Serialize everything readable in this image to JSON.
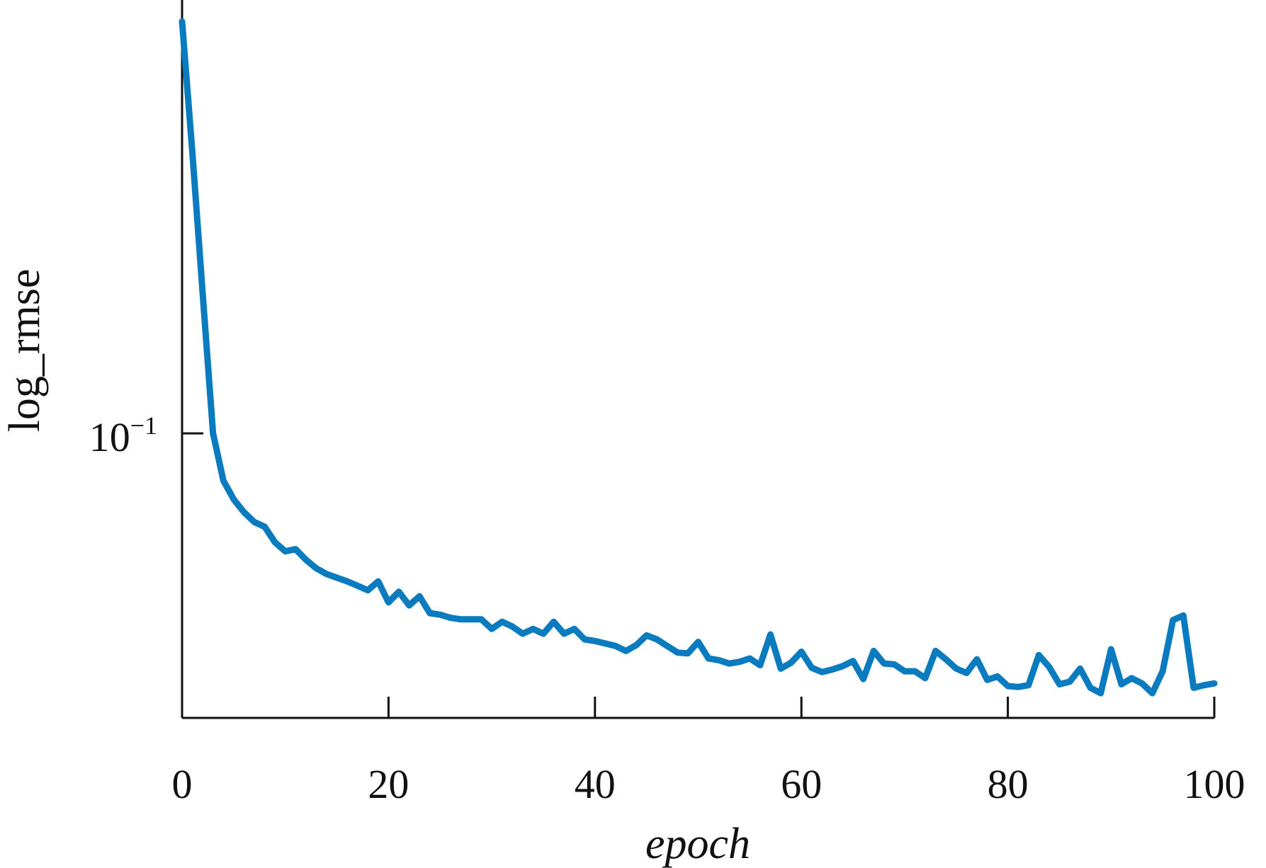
{
  "chart_data": {
    "type": "line",
    "xlabel": "epoch",
    "ylabel": "log_rmse",
    "yscale": "log",
    "xlim": [
      0,
      100
    ],
    "ylim": [
      0.0605,
      0.215
    ],
    "xticks": [
      0,
      20,
      40,
      60,
      80,
      100
    ],
    "xtick_labels": [
      "0",
      "20",
      "40",
      "60",
      "80",
      "100"
    ],
    "yticks": [
      0.1
    ],
    "ytick_labels": [
      {
        "base": "10",
        "exp": "−1"
      }
    ],
    "grid": false,
    "line_color": "#0a7bbf",
    "series": [
      {
        "x": [
          0,
          1,
          2,
          3,
          4,
          5,
          6,
          7,
          8,
          9,
          10,
          11,
          12,
          13,
          14,
          15,
          16,
          17,
          18,
          19,
          20,
          21,
          22,
          23,
          24,
          25,
          26,
          27,
          28,
          29,
          30,
          31,
          32,
          33,
          34,
          35,
          36,
          37,
          38,
          39,
          40,
          41,
          42,
          43,
          44,
          45,
          46,
          47,
          48,
          49,
          50,
          51,
          52,
          53,
          54,
          55,
          56,
          57,
          58,
          59,
          60,
          61,
          62,
          63,
          64,
          65,
          66,
          67,
          68,
          69,
          70,
          71,
          72,
          73,
          74,
          75,
          76,
          77,
          78,
          79,
          80,
          81,
          82,
          83,
          84,
          85,
          86,
          87,
          88,
          89,
          90,
          91,
          92,
          93,
          94,
          95,
          96,
          97,
          98,
          99,
          100
        ],
        "values": [
          0.207,
          0.164,
          0.128,
          0.1,
          0.092,
          0.089,
          0.087,
          0.0855,
          0.0848,
          0.0825,
          0.0812,
          0.0815,
          0.08,
          0.0788,
          0.078,
          0.0775,
          0.077,
          0.0764,
          0.0758,
          0.077,
          0.0742,
          0.0756,
          0.0738,
          0.075,
          0.0728,
          0.0726,
          0.0722,
          0.072,
          0.072,
          0.072,
          0.0708,
          0.0717,
          0.0711,
          0.0702,
          0.0708,
          0.0702,
          0.0717,
          0.0702,
          0.0708,
          0.0695,
          0.0693,
          0.069,
          0.0687,
          0.0681,
          0.0688,
          0.07,
          0.0695,
          0.0687,
          0.0679,
          0.0678,
          0.0692,
          0.0672,
          0.067,
          0.0666,
          0.0668,
          0.0672,
          0.0664,
          0.0701,
          0.066,
          0.0667,
          0.068,
          0.0661,
          0.0656,
          0.0659,
          0.0663,
          0.0669,
          0.0648,
          0.0681,
          0.0666,
          0.0665,
          0.0657,
          0.0657,
          0.0649,
          0.0681,
          0.0671,
          0.066,
          0.0655,
          0.0671,
          0.0647,
          0.0651,
          0.064,
          0.0639,
          0.0641,
          0.0676,
          0.0662,
          0.0642,
          0.0645,
          0.066,
          0.0638,
          0.0632,
          0.0683,
          0.0642,
          0.0649,
          0.0643,
          0.0632,
          0.0657,
          0.0719,
          0.0725,
          0.0638,
          0.0641,
          0.0643
        ]
      }
    ]
  }
}
